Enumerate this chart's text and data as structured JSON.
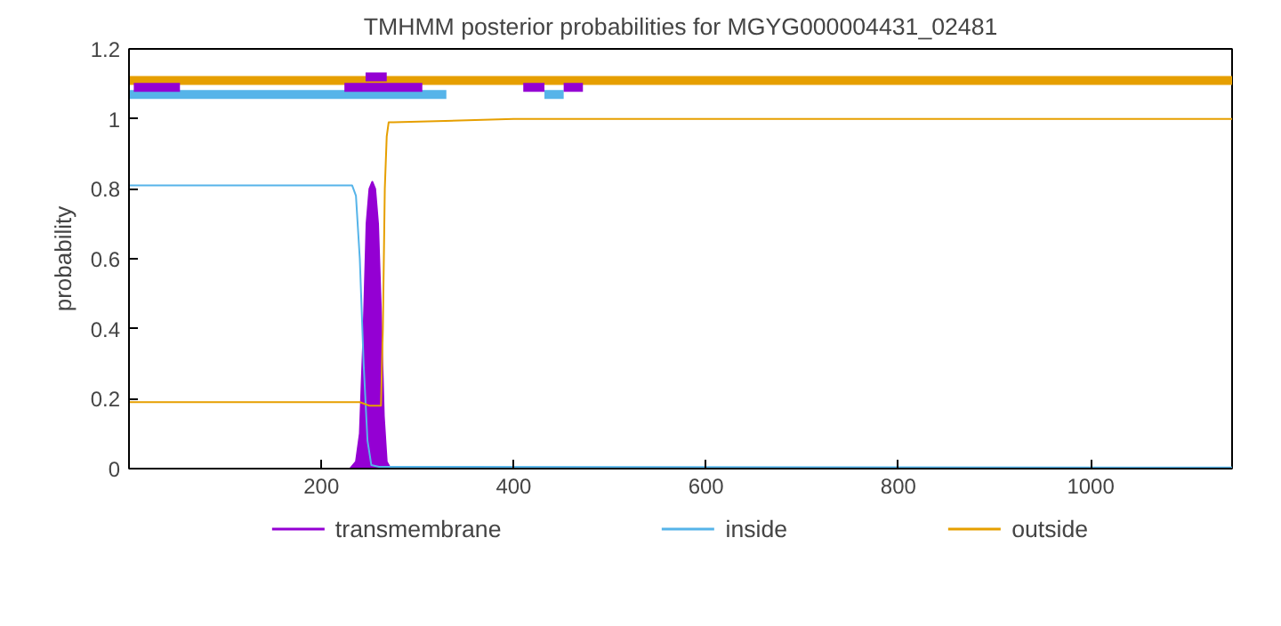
{
  "chart_data": {
    "type": "line",
    "title": "TMHMM posterior probabilities for MGYG000004431_02481",
    "ylabel": "probability",
    "xlim": [
      0,
      1147
    ],
    "ylim": [
      0,
      1.2
    ],
    "xticks": [
      200,
      400,
      600,
      800,
      1000
    ],
    "yticks": [
      0,
      0.2,
      0.4,
      0.6,
      0.8,
      1,
      1.2
    ],
    "grid": false,
    "legend": "bottom",
    "marker": "none",
    "line_style": "solid",
    "series": [
      {
        "name": "transmembrane",
        "type": "area",
        "color": "#9400d3",
        "x": [
          0,
          230,
          236,
          240,
          244,
          247,
          250,
          253,
          256,
          259,
          262,
          265,
          268,
          272,
          1147
        ],
        "values": [
          0,
          0,
          0.02,
          0.1,
          0.4,
          0.7,
          0.8,
          0.82,
          0.8,
          0.7,
          0.45,
          0.15,
          0.02,
          0,
          0
        ]
      },
      {
        "name": "inside",
        "color": "#56b4e9",
        "x": [
          0,
          232,
          236,
          240,
          244,
          248,
          252,
          260,
          300,
          1147
        ],
        "values": [
          0.81,
          0.81,
          0.78,
          0.6,
          0.3,
          0.08,
          0.01,
          0.005,
          0.005,
          0.003
        ]
      },
      {
        "name": "outside",
        "color": "#e69f00",
        "x": [
          0,
          240,
          250,
          262,
          264,
          266,
          268,
          270,
          275,
          400,
          1147
        ],
        "values": [
          0.19,
          0.19,
          0.18,
          0.18,
          0.4,
          0.8,
          0.95,
          0.99,
          0.99,
          1,
          1
        ]
      },
      {
        "color": "#e69f00",
        "x": [
          0,
          1147
        ],
        "values": [
          1.11,
          1.11
        ]
      },
      {
        "color": "#56b4e9",
        "x": [
          0,
          330,
          null,
          432,
          452
        ],
        "values": [
          1.07,
          1.07,
          null,
          1.07,
          1.07
        ]
      },
      {
        "color": "#9400d3",
        "x": [
          5,
          53,
          null,
          224,
          305,
          null,
          410,
          432,
          null,
          452,
          472
        ],
        "values": [
          1.09,
          1.09,
          null,
          1.09,
          1.09,
          null,
          1.09,
          1.09,
          null,
          1.09,
          1.09
        ]
      },
      {
        "color": "#9400d3",
        "x": [
          246,
          268
        ],
        "values": [
          1.12,
          1.12
        ]
      }
    ]
  }
}
